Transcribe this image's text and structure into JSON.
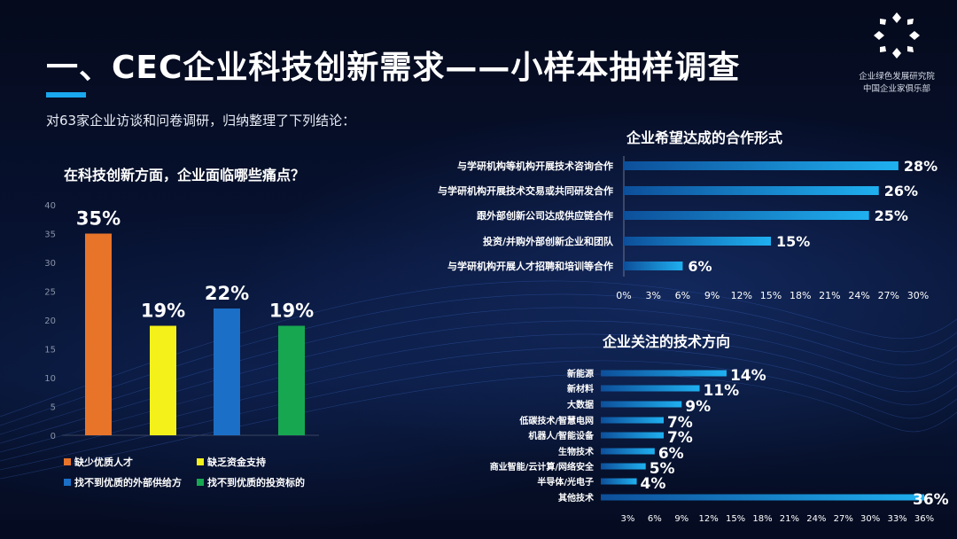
{
  "header": {
    "title": "一、CEC企业科技创新需求——小样本抽样调查",
    "subtitle": "对63家企业访谈和问卷调研，归纳整理了下列结论：",
    "org_line1": "企业绿色发展研究院",
    "org_line2": "中国企业家俱乐部"
  },
  "colors": {
    "background": "#071231",
    "accent": "#1aa7ee",
    "bar_blue": "#1a9de0"
  },
  "chart_data": [
    {
      "type": "bar",
      "title": "在科技创新方面，企业面临哪些痛点？",
      "categories": [
        "缺少优质人才",
        "缺乏资金支持",
        "找不到优质的外部供给方",
        "找不到优质的投资标的"
      ],
      "values": [
        35,
        19,
        22,
        19
      ],
      "value_labels": [
        "35%",
        "19%",
        "22%",
        "19%"
      ],
      "colors": [
        "#e8742a",
        "#f3f01a",
        "#1b6fc6",
        "#17a751"
      ],
      "ylim": [
        0,
        40
      ],
      "yticks": [
        "0",
        "5",
        "10",
        "15",
        "20",
        "25",
        "30",
        "35",
        "40"
      ],
      "legend": "bottom"
    },
    {
      "type": "bar",
      "orientation": "horizontal",
      "title": "企业希望达成的合作形式",
      "categories": [
        "与学研机构等机构开展技术咨询合作",
        "与学研机构开展技术交易或共同研发合作",
        "跟外部创新公司达成供应链合作",
        "投资/并购外部创新企业和团队",
        "与学研机构开展人才招聘和培训等合作"
      ],
      "values": [
        28,
        26,
        25,
        15,
        6
      ],
      "value_labels": [
        "28%",
        "26%",
        "25%",
        "15%",
        "6%"
      ],
      "xlim": [
        0,
        30
      ],
      "xticks": [
        "0%",
        "3%",
        "6%",
        "9%",
        "12%",
        "15%",
        "18%",
        "21%",
        "24%",
        "27%",
        "30%"
      ]
    },
    {
      "type": "bar",
      "orientation": "horizontal",
      "title": "企业关注的技术方向",
      "categories": [
        "新能源",
        "新材料",
        "大数据",
        "低碳技术/智慧电网",
        "机器人/智能设备",
        "生物技术",
        "商业智能/云计算/网络安全",
        "半导体/光电子",
        "其他技术"
      ],
      "values": [
        14,
        11,
        9,
        7,
        7,
        6,
        5,
        4,
        36
      ],
      "value_labels": [
        "14%",
        "11%",
        "9%",
        "7%",
        "7%",
        "6%",
        "5%",
        "4%",
        "36%"
      ],
      "xlim": [
        0,
        36
      ],
      "xticks": [
        "3%",
        "6%",
        "9%",
        "12%",
        "15%",
        "18%",
        "21%",
        "24%",
        "27%",
        "30%",
        "33%",
        "36%"
      ]
    }
  ]
}
